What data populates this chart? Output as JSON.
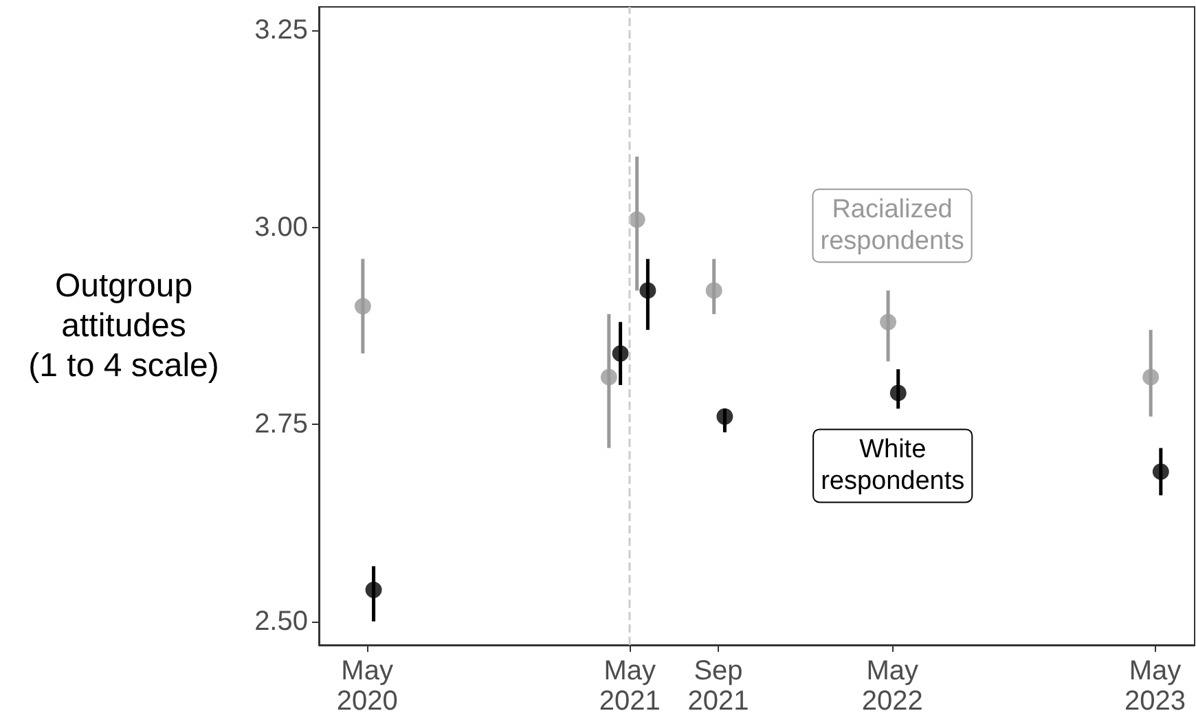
{
  "chart_data": {
    "type": "scatter",
    "ylabel": "Outgroup\nattitudes\n(1 to 4 scale)",
    "marker": "circle",
    "grid": false,
    "xlim": [
      "2020-02-24",
      "2023-06-25"
    ],
    "xticks": [
      {
        "value": "2020-05-01",
        "label": "May\n2020"
      },
      {
        "value": "2021-05-01",
        "label": "May\n2021"
      },
      {
        "value": "2021-09-01",
        "label": "Sep\n2021"
      },
      {
        "value": "2022-05-01",
        "label": "May\n2022"
      },
      {
        "value": "2023-05-01",
        "label": "May\n2023"
      }
    ],
    "ylim": [
      2.47,
      3.28
    ],
    "yticks": [
      {
        "value": 2.5,
        "label": "2.50"
      },
      {
        "value": 2.75,
        "label": "2.75"
      },
      {
        "value": 3.0,
        "label": "3.00"
      },
      {
        "value": 3.25,
        "label": "3.25"
      }
    ],
    "series": [
      {
        "name": "Racialized\nrespondents",
        "color": "#999999",
        "x": [
          "2020-04-25",
          "2021-04-02",
          "2021-05-11",
          "2021-08-26",
          "2022-04-25",
          "2023-04-25"
        ],
        "values": [
          2.9,
          2.81,
          3.01,
          2.92,
          2.88,
          2.81
        ],
        "errors": [
          [
            2.84,
            2.96
          ],
          [
            2.72,
            2.89
          ],
          [
            2.92,
            3.09
          ],
          [
            2.89,
            2.96
          ],
          [
            2.83,
            2.92
          ],
          [
            2.76,
            2.87
          ]
        ]
      },
      {
        "name": "White\nrespondents",
        "color": "#000000",
        "x": [
          "2020-05-10",
          "2021-04-18",
          "2021-05-26",
          "2021-09-10",
          "2022-05-09",
          "2023-05-09"
        ],
        "values": [
          2.54,
          2.84,
          2.92,
          2.76,
          2.79,
          2.69
        ],
        "errors": [
          [
            2.5,
            2.57
          ],
          [
            2.8,
            2.88
          ],
          [
            2.87,
            2.96
          ],
          [
            2.74,
            2.77
          ],
          [
            2.77,
            2.82
          ],
          [
            2.66,
            2.72
          ]
        ]
      }
    ],
    "ref_lines": [
      {
        "axis": "x",
        "value": "2021-05-01",
        "color": "#cccccc",
        "line_style": "dashed"
      }
    ]
  }
}
